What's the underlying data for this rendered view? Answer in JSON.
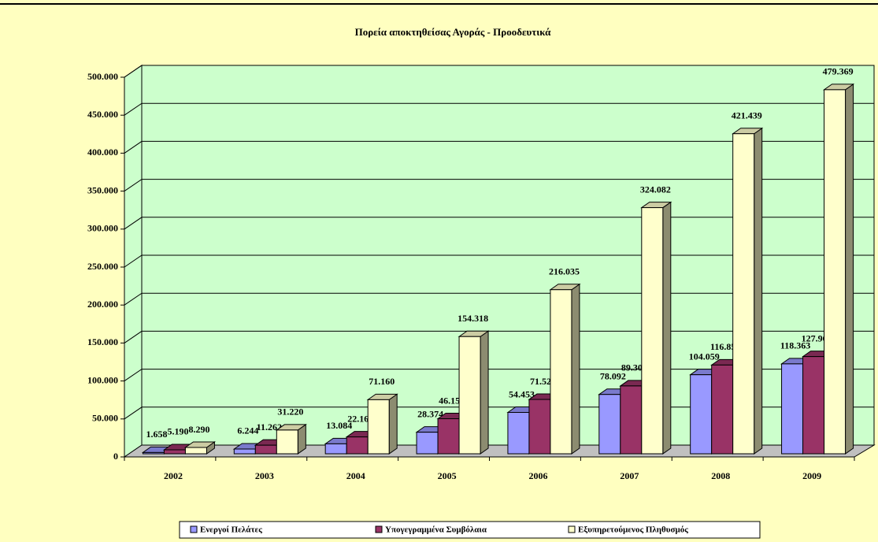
{
  "chart_data": {
    "type": "bar3d",
    "title": "Πορεία αποκτηθείσας Αγοράς - Προοδευτικά",
    "categories": [
      "2002",
      "2003",
      "2004",
      "2005",
      "2006",
      "2007",
      "2008",
      "2009"
    ],
    "series": [
      {
        "name": "Ενεργοί Πελάτες",
        "color": "#9999ff",
        "values": [
          1658,
          6244,
          13084,
          28374,
          54453,
          78092,
          104059,
          118363
        ],
        "value_labels": [
          "1.658",
          "6.244",
          "13.084",
          "28.374",
          "54.453",
          "78.092",
          "104.059",
          "118.363"
        ]
      },
      {
        "name": "Υπογεγραμμένα Συμβόλαια",
        "color": "#993366",
        "values": [
          5190,
          11262,
          22167,
          46159,
          71525,
          89307,
          116850,
          127967
        ],
        "value_labels": [
          "5.190",
          "11.262",
          "22.167",
          "46.159",
          "71.525",
          "89.307",
          "116.850",
          "127.967"
        ]
      },
      {
        "name": "Εξυπηρετούμενος Πληθυσμός",
        "color": "#ffffcc",
        "values": [
          8290,
          31220,
          71160,
          154318,
          216035,
          324082,
          421439,
          479369
        ],
        "value_labels": [
          "8.290",
          "31.220",
          "71.160",
          "154.318",
          "216.035",
          "324.082",
          "421.439",
          "479.369"
        ]
      }
    ],
    "ylim": [
      0,
      500000
    ],
    "yticks": [
      0,
      {
        "value": 50000,
        "label": "50.000"
      },
      {
        "value": 100000,
        "label": "100.000"
      },
      {
        "value": 150000,
        "label": "150.000"
      },
      {
        "value": 200000,
        "label": "200.000"
      },
      {
        "value": 250000,
        "label": "250.000"
      },
      {
        "value": 300000,
        "label": "300.000"
      },
      {
        "value": 350000,
        "label": "350.000"
      },
      {
        "value": 400000,
        "label": "400.000"
      },
      {
        "value": 450000,
        "label": "450.000"
      },
      {
        "value": 500000,
        "label": "500.000"
      }
    ],
    "grid": true,
    "legend": "bottom"
  }
}
